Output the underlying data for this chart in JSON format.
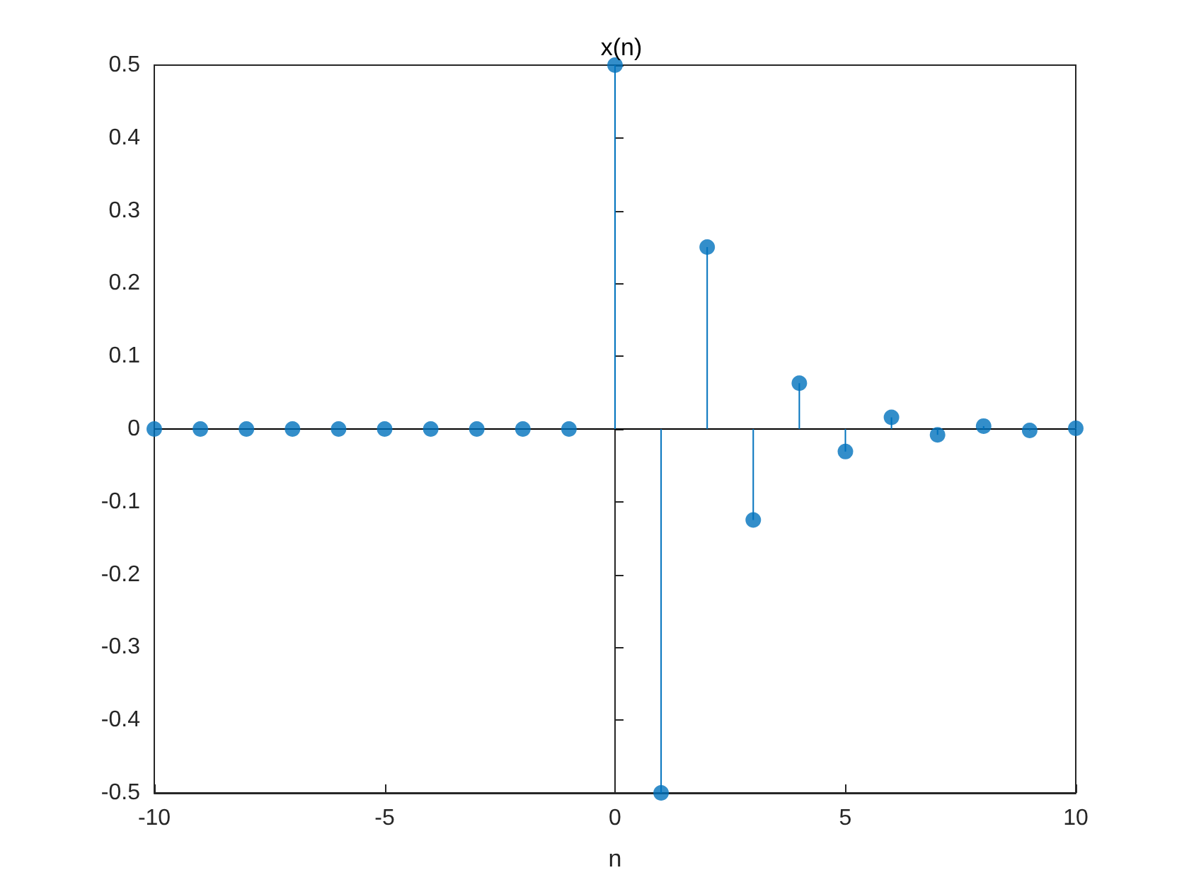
{
  "chart_data": {
    "type": "lollipop",
    "title": "x(n)",
    "xlabel": "n",
    "x": [
      -10,
      -9,
      -8,
      -7,
      -6,
      -5,
      -4,
      -3,
      -2,
      -1,
      0,
      1,
      2,
      3,
      4,
      5,
      6,
      7,
      8,
      9,
      10
    ],
    "series": [
      {
        "color": "#0072bd",
        "values": [
          0,
          0,
          0,
          0,
          0,
          0,
          0,
          0,
          0,
          0,
          0.5,
          -0.5,
          0.25,
          -0.125,
          0.063,
          -0.031,
          0.016,
          -0.008,
          0.004,
          -0.002,
          0.001
        ]
      }
    ],
    "xlim": [
      -10,
      10
    ],
    "xticks": [
      -10,
      -5,
      0,
      5,
      10
    ],
    "ylim": [
      -0.5,
      0.5
    ],
    "yticks": [
      -0.5,
      -0.4,
      -0.3,
      -0.2,
      -0.1,
      0,
      0.1,
      0.2,
      0.3,
      0.4,
      0.5
    ],
    "grid": false,
    "marker": "circle"
  }
}
